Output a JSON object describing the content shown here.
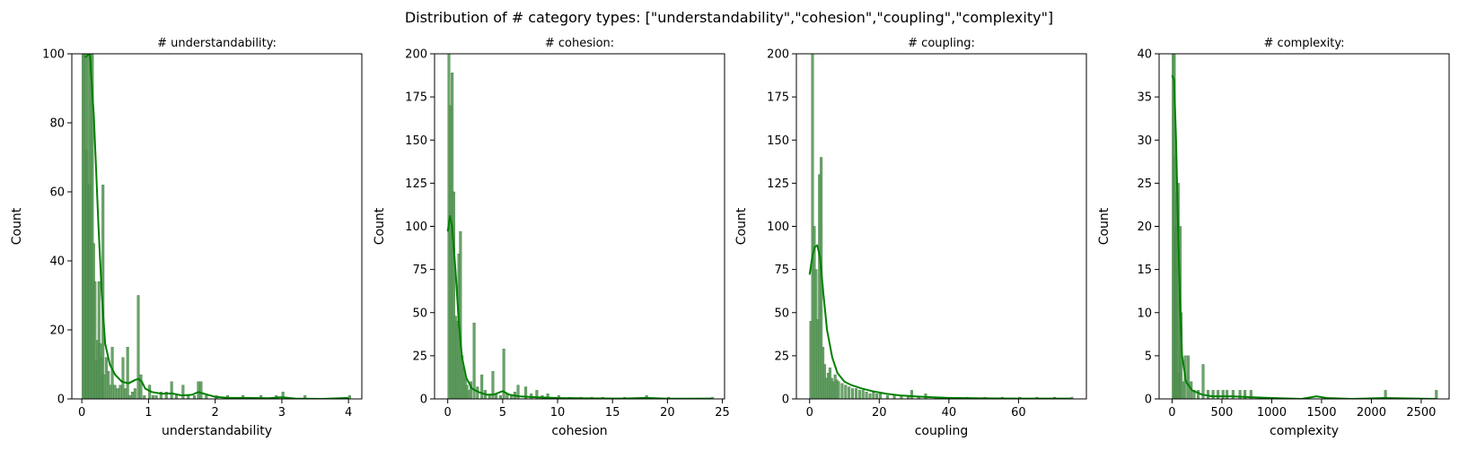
{
  "figure_title": "Distribution of # category types: [\"understandability\",\"cohesion\",\"coupling\",\"complexity\"]",
  "colors": {
    "bar_fill": "#5a9a5a",
    "bar_stroke": "#3f7a3f",
    "kde_line": "#008000",
    "axis": "#000000"
  },
  "chart_data": [
    {
      "type": "histogram",
      "title": "# understandability:",
      "xlabel": "understandability",
      "ylabel": "Count",
      "xlim": [
        -0.15,
        4.2
      ],
      "ylim": [
        0,
        100
      ],
      "xticks": [
        0,
        1,
        2,
        3,
        4
      ],
      "yticks": [
        0,
        20,
        40,
        60,
        80,
        100
      ],
      "bins": [
        [
          0.0,
          100
        ],
        [
          0.02,
          100
        ],
        [
          0.04,
          100
        ],
        [
          0.06,
          72
        ],
        [
          0.08,
          100
        ],
        [
          0.1,
          62
        ],
        [
          0.12,
          100
        ],
        [
          0.14,
          100
        ],
        [
          0.16,
          45
        ],
        [
          0.18,
          34
        ],
        [
          0.2,
          11
        ],
        [
          0.22,
          17
        ],
        [
          0.24,
          34
        ],
        [
          0.26,
          16
        ],
        [
          0.28,
          12
        ],
        [
          0.3,
          62
        ],
        [
          0.32,
          7
        ],
        [
          0.35,
          12
        ],
        [
          0.38,
          8
        ],
        [
          0.41,
          4
        ],
        [
          0.44,
          15
        ],
        [
          0.48,
          4
        ],
        [
          0.52,
          3
        ],
        [
          0.56,
          4
        ],
        [
          0.6,
          12
        ],
        [
          0.64,
          3
        ],
        [
          0.67,
          15
        ],
        [
          0.7,
          1
        ],
        [
          0.74,
          2
        ],
        [
          0.78,
          3
        ],
        [
          0.83,
          30
        ],
        [
          0.87,
          7
        ],
        [
          0.92,
          1
        ],
        [
          1.0,
          4
        ],
        [
          1.05,
          1
        ],
        [
          1.1,
          1
        ],
        [
          1.17,
          2
        ],
        [
          1.25,
          2
        ],
        [
          1.33,
          5
        ],
        [
          1.4,
          1
        ],
        [
          1.5,
          4
        ],
        [
          1.58,
          1
        ],
        [
          1.67,
          1
        ],
        [
          1.73,
          5
        ],
        [
          1.77,
          5
        ],
        [
          1.85,
          1
        ],
        [
          2.0,
          1
        ],
        [
          2.17,
          1
        ],
        [
          2.4,
          1
        ],
        [
          2.67,
          1
        ],
        [
          2.9,
          1
        ],
        [
          3.0,
          2
        ],
        [
          3.33,
          1
        ],
        [
          4.0,
          1
        ]
      ],
      "kde": [
        [
          0.05,
          99
        ],
        [
          0.12,
          100
        ],
        [
          0.18,
          82
        ],
        [
          0.25,
          50
        ],
        [
          0.3,
          30
        ],
        [
          0.35,
          16
        ],
        [
          0.42,
          10
        ],
        [
          0.5,
          7
        ],
        [
          0.6,
          5
        ],
        [
          0.7,
          4.5
        ],
        [
          0.8,
          5.5
        ],
        [
          0.85,
          5.8
        ],
        [
          0.9,
          5
        ],
        [
          0.95,
          3
        ],
        [
          1.05,
          2
        ],
        [
          1.2,
          1.5
        ],
        [
          1.35,
          1.6
        ],
        [
          1.5,
          1
        ],
        [
          1.65,
          1.2
        ],
        [
          1.75,
          2
        ],
        [
          1.85,
          1.4
        ],
        [
          2.0,
          0.6
        ],
        [
          2.2,
          0.3
        ],
        [
          2.5,
          0.3
        ],
        [
          2.8,
          0.2
        ],
        [
          3.0,
          0.5
        ],
        [
          3.2,
          0.1
        ],
        [
          3.6,
          0
        ],
        [
          4.0,
          0.3
        ]
      ]
    },
    {
      "type": "histogram",
      "title": "# cohesion:",
      "xlabel": "cohesion",
      "ylabel": "Count",
      "xlim": [
        -1.2,
        25.2
      ],
      "ylim": [
        0,
        200
      ],
      "xticks": [
        0,
        5,
        10,
        15,
        20,
        25
      ],
      "yticks": [
        0,
        25,
        50,
        75,
        100,
        125,
        150,
        175,
        200
      ],
      "bins": [
        [
          0.0,
          200
        ],
        [
          0.15,
          170
        ],
        [
          0.3,
          189
        ],
        [
          0.45,
          120
        ],
        [
          0.6,
          48
        ],
        [
          0.75,
          45
        ],
        [
          0.9,
          84
        ],
        [
          1.05,
          97
        ],
        [
          1.2,
          25
        ],
        [
          1.35,
          18
        ],
        [
          1.5,
          12
        ],
        [
          1.65,
          8
        ],
        [
          1.8,
          5
        ],
        [
          2.0,
          10
        ],
        [
          2.3,
          44
        ],
        [
          2.6,
          7
        ],
        [
          3.0,
          14
        ],
        [
          3.3,
          5
        ],
        [
          3.7,
          2
        ],
        [
          4.0,
          16
        ],
        [
          4.3,
          3
        ],
        [
          4.7,
          2
        ],
        [
          5.0,
          29
        ],
        [
          5.3,
          3
        ],
        [
          5.7,
          2
        ],
        [
          6.0,
          4
        ],
        [
          6.3,
          8
        ],
        [
          7.0,
          7
        ],
        [
          7.5,
          3
        ],
        [
          8.0,
          5
        ],
        [
          8.5,
          2
        ],
        [
          9.0,
          3
        ],
        [
          10.0,
          2
        ],
        [
          11.0,
          1
        ],
        [
          12.0,
          1
        ],
        [
          13.0,
          1
        ],
        [
          14.0,
          1
        ],
        [
          16.0,
          1
        ],
        [
          18.0,
          2
        ],
        [
          20.0,
          1
        ],
        [
          24.0,
          1
        ]
      ],
      "kde": [
        [
          0.0,
          97
        ],
        [
          0.2,
          106
        ],
        [
          0.4,
          100
        ],
        [
          0.7,
          75
        ],
        [
          1.0,
          45
        ],
        [
          1.3,
          24
        ],
        [
          1.7,
          12
        ],
        [
          2.2,
          6
        ],
        [
          2.8,
          4
        ],
        [
          3.5,
          2.5
        ],
        [
          4.2,
          2.5
        ],
        [
          5.0,
          4.5
        ],
        [
          5.6,
          2.5
        ],
        [
          6.5,
          1.5
        ],
        [
          8.0,
          1
        ],
        [
          10.0,
          0.5
        ],
        [
          13.0,
          0.3
        ],
        [
          16.0,
          0.2
        ],
        [
          18.0,
          0.6
        ],
        [
          20.0,
          0.1
        ],
        [
          24.0,
          0.2
        ]
      ]
    },
    {
      "type": "histogram",
      "title": "# coupling:",
      "xlabel": "coupling",
      "ylabel": "Count",
      "xlim": [
        -3.8,
        79.5
      ],
      "ylim": [
        0,
        200
      ],
      "xticks": [
        0,
        20,
        40,
        60
      ],
      "yticks": [
        0,
        25,
        50,
        75,
        100,
        125,
        150,
        175,
        200
      ],
      "bins": [
        [
          0.0,
          45
        ],
        [
          0.5,
          200
        ],
        [
          1.0,
          100
        ],
        [
          1.5,
          75
        ],
        [
          2.0,
          46
        ],
        [
          2.5,
          130
        ],
        [
          3.0,
          140
        ],
        [
          3.5,
          30
        ],
        [
          4.0,
          20
        ],
        [
          4.5,
          12
        ],
        [
          5.0,
          15
        ],
        [
          5.5,
          18
        ],
        [
          6.0,
          12
        ],
        [
          6.5,
          10
        ],
        [
          7.0,
          14
        ],
        [
          7.5,
          11
        ],
        [
          8.0,
          10
        ],
        [
          9.0,
          9
        ],
        [
          10.0,
          8
        ],
        [
          11.0,
          7
        ],
        [
          12.0,
          6
        ],
        [
          13.0,
          6
        ],
        [
          14.0,
          5
        ],
        [
          15.0,
          5
        ],
        [
          16.0,
          4
        ],
        [
          17.0,
          3
        ],
        [
          18.0,
          4
        ],
        [
          19.0,
          3
        ],
        [
          20.0,
          3
        ],
        [
          22.0,
          2
        ],
        [
          24.0,
          2
        ],
        [
          26.0,
          2
        ],
        [
          28.0,
          2
        ],
        [
          29.0,
          5
        ],
        [
          31.0,
          1
        ],
        [
          33.0,
          3
        ],
        [
          36.0,
          1
        ],
        [
          40.0,
          1
        ],
        [
          45.0,
          1
        ],
        [
          50.0,
          1
        ],
        [
          55.0,
          1
        ],
        [
          60.0,
          1
        ],
        [
          65.0,
          1
        ],
        [
          70.0,
          1
        ],
        [
          75.0,
          1
        ]
      ],
      "kde": [
        [
          0.0,
          72
        ],
        [
          0.8,
          83
        ],
        [
          1.5,
          88
        ],
        [
          2.2,
          89
        ],
        [
          3.0,
          82
        ],
        [
          4.0,
          60
        ],
        [
          5.0,
          40
        ],
        [
          6.5,
          24
        ],
        [
          8.0,
          15
        ],
        [
          10.0,
          10
        ],
        [
          12.0,
          8
        ],
        [
          15.0,
          6
        ],
        [
          18.0,
          4.5
        ],
        [
          22.0,
          3
        ],
        [
          26.0,
          2
        ],
        [
          30.0,
          1.5
        ],
        [
          35.0,
          1
        ],
        [
          40.0,
          0.6
        ],
        [
          50.0,
          0.3
        ],
        [
          60.0,
          0.2
        ],
        [
          75.0,
          0.2
        ]
      ]
    },
    {
      "type": "histogram",
      "title": "# complexity:",
      "xlabel": "complexity",
      "ylabel": "Count",
      "xlim": [
        -130,
        2780
      ],
      "ylim": [
        0,
        40
      ],
      "xticks": [
        0,
        500,
        1000,
        1500,
        2000,
        2500
      ],
      "yticks": [
        0,
        5,
        10,
        15,
        20,
        25,
        30,
        35,
        40
      ],
      "bins": [
        [
          0,
          40
        ],
        [
          10,
          40
        ],
        [
          20,
          28
        ],
        [
          30,
          20
        ],
        [
          40,
          24
        ],
        [
          50,
          25
        ],
        [
          60,
          3
        ],
        [
          70,
          20
        ],
        [
          80,
          10
        ],
        [
          100,
          2
        ],
        [
          120,
          5
        ],
        [
          150,
          5
        ],
        [
          180,
          2
        ],
        [
          210,
          1
        ],
        [
          250,
          1
        ],
        [
          300,
          4
        ],
        [
          350,
          1
        ],
        [
          400,
          1
        ],
        [
          450,
          1
        ],
        [
          500,
          1
        ],
        [
          540,
          1
        ],
        [
          600,
          1
        ],
        [
          670,
          1
        ],
        [
          720,
          1
        ],
        [
          780,
          1
        ],
        [
          2130,
          1
        ],
        [
          2640,
          1
        ]
      ],
      "kde": [
        [
          0,
          37.5
        ],
        [
          20,
          37
        ],
        [
          40,
          30
        ],
        [
          60,
          20
        ],
        [
          80,
          11
        ],
        [
          100,
          5
        ],
        [
          140,
          2
        ],
        [
          200,
          1
        ],
        [
          300,
          0.5
        ],
        [
          400,
          0.3
        ],
        [
          600,
          0.3
        ],
        [
          800,
          0.2
        ],
        [
          1000,
          0.1
        ],
        [
          1300,
          0
        ],
        [
          1450,
          0.3
        ],
        [
          1550,
          0.1
        ],
        [
          1800,
          0
        ],
        [
          2130,
          0.1
        ],
        [
          2650,
          0
        ]
      ]
    }
  ]
}
